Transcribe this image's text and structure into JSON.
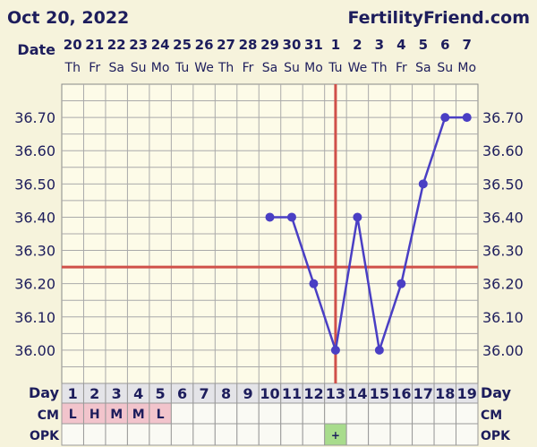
{
  "header": {
    "date": "Oct 20, 2022",
    "site": "FertilityFriend.com",
    "date_label": "Date",
    "day_label": "Day",
    "cm_label": "CM",
    "opk_label": "OPK"
  },
  "chart_data": {
    "type": "line",
    "title": "",
    "dates": [
      "20",
      "21",
      "22",
      "23",
      "24",
      "25",
      "26",
      "27",
      "28",
      "29",
      "30",
      "31",
      "1",
      "2",
      "3",
      "4",
      "5",
      "6",
      "7"
    ],
    "weekdays": [
      "Th",
      "Fr",
      "Sa",
      "Su",
      "Mo",
      "Tu",
      "We",
      "Th",
      "Fr",
      "Sa",
      "Su",
      "Mo",
      "Tu",
      "We",
      "Th",
      "Fr",
      "Sa",
      "Su",
      "Mo"
    ],
    "days": [
      "1",
      "2",
      "3",
      "4",
      "5",
      "6",
      "7",
      "8",
      "9",
      "10",
      "11",
      "12",
      "13",
      "14",
      "15",
      "16",
      "17",
      "18",
      "19"
    ],
    "temps": [
      null,
      null,
      null,
      null,
      null,
      null,
      null,
      null,
      null,
      36.4,
      36.4,
      36.2,
      36.0,
      36.4,
      36.0,
      36.2,
      36.5,
      36.7,
      36.7
    ],
    "yticks": [
      "36.70",
      "36.60",
      "36.50",
      "36.40",
      "36.30",
      "36.20",
      "36.10",
      "36.00"
    ],
    "ylim": [
      35.9,
      36.8
    ],
    "coverline": 36.25,
    "ovulation_day": 13,
    "cm": [
      "L",
      "H",
      "M",
      "M",
      "L",
      "",
      "",
      "",
      "",
      "",
      "",
      "",
      "",
      "",
      "",
      "",
      "",
      "",
      ""
    ],
    "opk": [
      "",
      "",
      "",
      "",
      "",
      "",
      "",
      "",
      "",
      "",
      "",
      "",
      "+",
      "",
      "",
      "",
      "",
      "",
      ""
    ],
    "colors": {
      "line": "#4a3fc4",
      "marker": "#4a3fc4",
      "coverline": "#d0504a",
      "cm_fill": "#f2c4cc",
      "opk_fill": "#a8dc8c",
      "plot_bg": "#fdfbe8",
      "grid": "#999999"
    }
  }
}
